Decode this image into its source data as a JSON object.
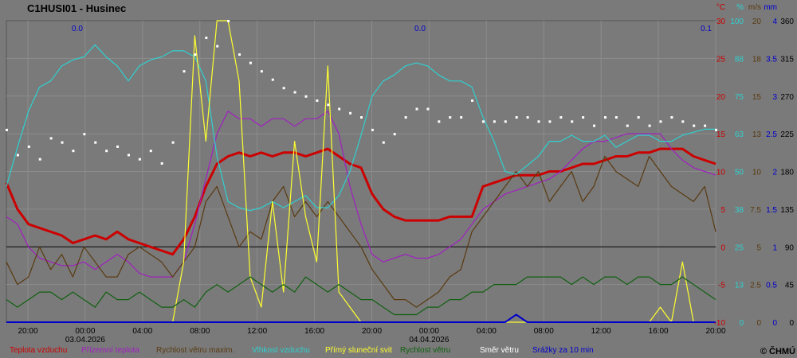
{
  "title": "C1HUSI01 - Husinec",
  "copyright": "© ČHMÚ",
  "colors": {
    "background": "#7a7a7a",
    "grid": "#8c8c8c",
    "temp": "#cc0000",
    "ground": "#a020c0",
    "gust": "#5a3a10",
    "humidity": "#30d0d0",
    "sun": "#ffff30",
    "wind": "#106010",
    "dir": "#ffffff",
    "precip": "#0000cc"
  },
  "chart_data": {
    "type": "line",
    "x_ticks": [
      "20:00",
      "00:00",
      "04:00",
      "08:00",
      "12:00",
      "16:00",
      "20:00",
      "00:00",
      "04:00",
      "08:00",
      "12:00",
      "16:00",
      "20:00"
    ],
    "date_labels": [
      {
        "at": "00:00",
        "index": 1,
        "text": "03.04.2026"
      },
      {
        "at": "00:00",
        "index": 7,
        "text": "04.04.2026"
      }
    ],
    "precip_totals": [
      "0.0",
      "0.0",
      "0.1"
    ],
    "axes": [
      {
        "key": "temp",
        "unit": "°C",
        "range": [
          -10,
          30
        ],
        "ticks": [
          "-10",
          "-5",
          "0",
          "5",
          "10",
          "15",
          "20",
          "25",
          "30"
        ],
        "color": "#cc0000"
      },
      {
        "key": "humidity",
        "unit": "%",
        "range": [
          0,
          100
        ],
        "ticks": [
          "0",
          "13",
          "25",
          "38",
          "50",
          "63",
          "75",
          "88",
          "100"
        ],
        "color": "#30d0d0"
      },
      {
        "key": "wind",
        "unit": "m/s",
        "range": [
          0,
          20
        ],
        "ticks": [
          "0",
          "2.5",
          "5",
          "7.5",
          "10",
          "13",
          "15",
          "18",
          "20"
        ],
        "color": "#5a3a10"
      },
      {
        "key": "precip",
        "unit": "mm",
        "range": [
          0,
          4
        ],
        "ticks": [
          "0",
          "0.5",
          "1",
          "1.5",
          "2",
          "2.5",
          "3",
          "3.5",
          "4"
        ],
        "color": "#0000cc"
      },
      {
        "key": "dir",
        "unit": "",
        "range": [
          0,
          360
        ],
        "ticks": [
          "0",
          "45",
          "90",
          "135",
          "180",
          "225",
          "270",
          "315",
          "360"
        ],
        "color": "#000000"
      }
    ],
    "series": [
      {
        "key": "temp",
        "name": "Teplota vzduchu",
        "color": "#cc0000",
        "axis": "temp",
        "values": [
          8.5,
          5,
          3,
          2.5,
          2,
          1.5,
          0.5,
          1,
          1.5,
          1,
          2,
          1,
          0.5,
          0,
          -0.5,
          -1,
          1,
          4,
          8,
          11,
          12,
          12.5,
          12,
          12.5,
          12,
          12.5,
          12.5,
          12,
          12.5,
          13,
          12,
          11,
          10.5,
          7,
          5,
          4,
          3.5,
          3.5,
          3.5,
          3.5,
          4,
          4,
          4,
          8,
          8.5,
          9,
          9.5,
          9.5,
          9.5,
          10,
          10,
          10.5,
          11,
          11,
          11.5,
          12,
          12,
          12.5,
          12.5,
          13,
          13,
          13,
          12,
          11.5,
          11
        ]
      },
      {
        "key": "ground",
        "name": "Přízemní teplota",
        "color": "#a020c0",
        "axis": "temp",
        "values": [
          4,
          3,
          0,
          -1.5,
          -2,
          -2.5,
          -2.5,
          -2,
          -3,
          -2,
          -1,
          -2,
          -3.5,
          -4,
          -4,
          -4,
          -2,
          3,
          9,
          15,
          18,
          17,
          17,
          16,
          17,
          17,
          16,
          17,
          17,
          18,
          15,
          8,
          3,
          -1,
          -2,
          -1.5,
          -1,
          -1.5,
          -1.5,
          -1,
          0,
          1,
          3,
          5,
          6,
          7,
          7.5,
          8,
          8.5,
          9,
          10,
          11.5,
          13,
          14,
          14,
          14.5,
          15,
          15,
          15,
          15,
          13,
          11.5,
          10.5,
          10,
          9.5
        ]
      },
      {
        "key": "gust",
        "name": "Rychlost větru maxim.",
        "color": "#5a3a10",
        "axis": "wind",
        "values": [
          4,
          2.5,
          3,
          5,
          3.5,
          4.5,
          3,
          5,
          4,
          3,
          3,
          4.5,
          5,
          4.5,
          4,
          3,
          4,
          5,
          8,
          9,
          7,
          5,
          6,
          5.5,
          8,
          9,
          7,
          8,
          7,
          8,
          7,
          6,
          5,
          3.5,
          2.5,
          1.5,
          1.5,
          1,
          1.5,
          2,
          3,
          3.5,
          6,
          7,
          8,
          9,
          10,
          9,
          10,
          8,
          9,
          10,
          8,
          9,
          11,
          10,
          9.5,
          9,
          11,
          10,
          9,
          8.5,
          8,
          9,
          6
        ]
      },
      {
        "key": "humidity",
        "name": "Vlhkost vzduchu",
        "color": "#30d0d0",
        "axis": "humidity",
        "values": [
          45,
          58,
          70,
          78,
          80,
          85,
          87,
          88,
          92,
          88,
          85,
          80,
          85,
          87,
          88,
          90,
          90,
          88,
          80,
          55,
          40,
          38,
          37,
          38,
          40,
          38,
          40,
          42,
          38,
          38,
          42,
          50,
          62,
          75,
          80,
          82,
          85,
          86,
          85,
          82,
          80,
          80,
          78,
          68,
          60,
          50,
          49,
          52,
          55,
          60,
          60,
          62,
          60,
          60,
          62,
          58,
          60,
          62,
          62,
          60,
          60,
          62,
          63,
          64,
          64
        ]
      },
      {
        "key": "sun",
        "name": "Přímý sluneční svit",
        "color": "#ffff30",
        "axis": "humidity",
        "values": [
          0,
          0,
          0,
          0,
          0,
          0,
          0,
          0,
          0,
          0,
          0,
          0,
          0,
          0,
          0,
          0,
          20,
          95,
          60,
          100,
          100,
          80,
          15,
          5,
          40,
          10,
          60,
          35,
          20,
          85,
          10,
          5,
          0,
          0,
          0,
          0,
          0,
          0,
          0,
          0,
          0,
          0,
          0,
          0,
          0,
          0,
          0,
          0,
          0,
          0,
          0,
          0,
          0,
          0,
          0,
          0,
          0,
          0,
          0,
          5,
          0,
          20,
          0,
          0,
          0
        ]
      },
      {
        "key": "wind",
        "name": "Rychlost větru",
        "color": "#106010",
        "axis": "wind",
        "values": [
          1.5,
          1,
          1.5,
          2,
          2,
          1.5,
          2,
          1.5,
          1,
          2,
          1.5,
          1.5,
          2,
          1.5,
          1,
          1,
          1.5,
          1,
          2,
          2.5,
          2,
          2.5,
          3,
          2.5,
          2,
          2.5,
          2,
          3,
          2.5,
          2,
          2.5,
          2,
          1.5,
          1.5,
          1,
          0.5,
          0.5,
          0.5,
          1,
          1,
          1.5,
          1.5,
          2,
          2,
          2.5,
          2.5,
          2.5,
          3,
          3,
          3,
          3,
          2.5,
          3,
          2.5,
          3,
          3,
          2.5,
          3,
          3,
          2.5,
          2.5,
          3,
          2.5,
          2,
          1.5
        ]
      },
      {
        "key": "dir",
        "name": "Směr větru",
        "color": "#ffffff",
        "axis": "dir",
        "values": [
          230,
          200,
          210,
          195,
          220,
          215,
          205,
          225,
          215,
          205,
          210,
          200,
          195,
          205,
          190,
          215,
          300,
          320,
          340,
          330,
          360,
          320,
          310,
          300,
          290,
          280,
          275,
          270,
          265,
          260,
          255,
          250,
          245,
          230,
          215,
          225,
          245,
          255,
          255,
          240,
          245,
          245,
          265,
          240,
          240,
          240,
          245,
          245,
          240,
          240,
          245,
          240,
          245,
          235,
          245,
          245,
          235,
          245,
          235,
          240,
          245,
          240,
          235,
          235,
          230
        ]
      },
      {
        "key": "precip",
        "name": "Srážky za 10 min",
        "color": "#0000cc",
        "axis": "precip",
        "values": [
          0,
          0,
          0,
          0,
          0,
          0,
          0,
          0,
          0,
          0,
          0,
          0,
          0,
          0,
          0,
          0,
          0,
          0,
          0,
          0,
          0,
          0,
          0,
          0,
          0,
          0,
          0,
          0,
          0,
          0,
          0,
          0,
          0,
          0,
          0,
          0,
          0,
          0,
          0,
          0,
          0,
          0,
          0,
          0,
          0,
          0,
          0.1,
          0,
          0,
          0,
          0,
          0,
          0,
          0,
          0,
          0,
          0,
          0,
          0,
          0,
          0,
          0,
          0,
          0,
          0
        ]
      }
    ]
  }
}
